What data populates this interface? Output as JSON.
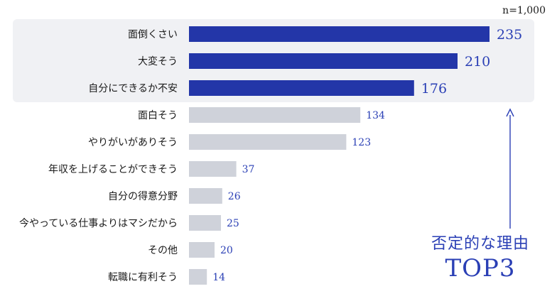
{
  "chart_data": {
    "type": "bar",
    "orientation": "horizontal",
    "n_label": "n=1,000",
    "categories": [
      "面倒くさい",
      "大変そう",
      "自分にできるか不安",
      "面白そう",
      "やりがいがありそう",
      "年収を上げることができそう",
      "自分の得意分野",
      "今やっている仕事よりはマシだから",
      "その他",
      "転職に有利そう"
    ],
    "values": [
      235,
      210,
      176,
      134,
      123,
      37,
      26,
      25,
      20,
      14
    ],
    "highlighted_top": 3,
    "xlim": [
      0,
      235
    ],
    "colors": {
      "highlight_bar": "#2336a8",
      "normal_bar": "#cfd2da",
      "highlight_bg": "#f0f1f4",
      "value_text": "#2a3fb5",
      "label_text": "#1a1a1a"
    },
    "annotation": {
      "line1": "否定的な理由",
      "line2": "TOP3"
    }
  }
}
